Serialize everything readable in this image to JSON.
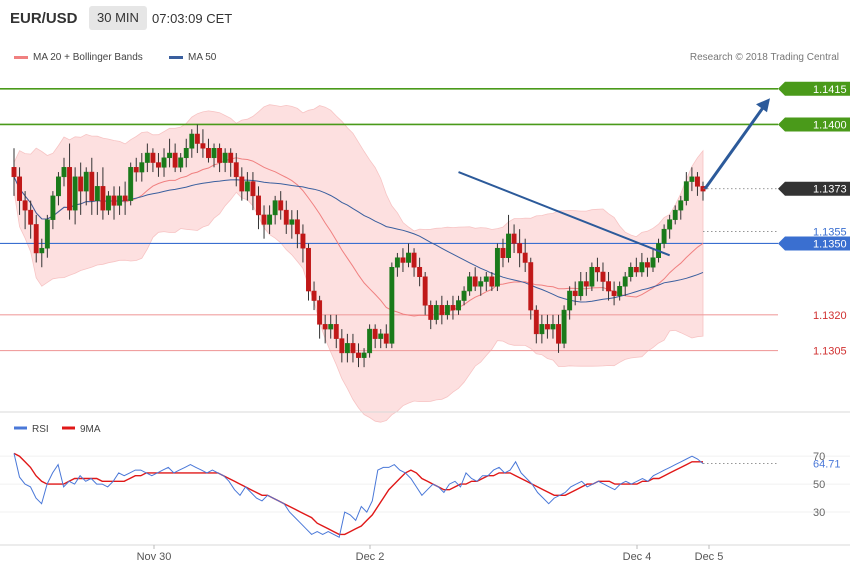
{
  "header": {
    "symbol": "EUR/USD",
    "timeframe": "30 MIN",
    "time": "07:03:09 CET"
  },
  "legend": {
    "ma20": {
      "label": "MA 20 + Bollinger Bands",
      "color": "#f08080"
    },
    "ma50": {
      "label": "MA 50",
      "color": "#3a5f9e"
    },
    "copyright": "Research © 2018 Trading Central"
  },
  "rsi_legend": {
    "rsi": {
      "label": "RSI",
      "color": "#4a78d8"
    },
    "ma9": {
      "label": "9MA",
      "color": "#e01818"
    }
  },
  "colors": {
    "up": "#1a7a1a",
    "down": "#c01818",
    "bb_fill": "#fde0e0",
    "support_line": "#f0a0a0",
    "pivot_line": "#3a6fd0",
    "resistance_line": "#4a9a1a",
    "trend_arrow": "#2c5a9a",
    "price_marker": "#333333"
  },
  "chart_data": [
    {
      "type": "candlestick",
      "title": "EUR/USD",
      "y_range": [
        1.128,
        1.1425
      ],
      "x_ticks": [
        "Nov 30",
        "Dec 2",
        "Dec 4",
        "Dec 5"
      ],
      "current_price": "1.1373",
      "levels": [
        {
          "value": 1.1415,
          "label": "1.1415",
          "kind": "resistance"
        },
        {
          "value": 1.14,
          "label": "1.1400",
          "kind": "resistance"
        },
        {
          "value": 1.1355,
          "label": "1.1355",
          "kind": "pivot-text"
        },
        {
          "value": 1.135,
          "label": "1.1350",
          "kind": "pivot"
        },
        {
          "value": 1.132,
          "label": "1.1320",
          "kind": "support"
        },
        {
          "value": 1.1305,
          "label": "1.1305",
          "kind": "support"
        }
      ],
      "candles": [
        [
          1.1382,
          1.1378,
          1.139,
          1.137
        ],
        [
          1.1378,
          1.1368,
          1.1382,
          1.1362
        ],
        [
          1.1368,
          1.1364,
          1.1372,
          1.1356
        ],
        [
          1.1364,
          1.1358,
          1.1368,
          1.1352
        ],
        [
          1.1358,
          1.1346,
          1.1362,
          1.1342
        ],
        [
          1.1346,
          1.1348,
          1.1352,
          1.134
        ],
        [
          1.1348,
          1.136,
          1.1362,
          1.1344
        ],
        [
          1.136,
          1.137,
          1.1372,
          1.1356
        ],
        [
          1.137,
          1.1378,
          1.138,
          1.1366
        ],
        [
          1.1378,
          1.1382,
          1.1386,
          1.1374
        ],
        [
          1.1382,
          1.1364,
          1.1392,
          1.136
        ],
        [
          1.1364,
          1.1378,
          1.1382,
          1.1358
        ],
        [
          1.1378,
          1.1372,
          1.1384,
          1.1362
        ],
        [
          1.1372,
          1.138,
          1.1382,
          1.1366
        ],
        [
          1.138,
          1.1368,
          1.1386,
          1.1362
        ],
        [
          1.1368,
          1.1374,
          1.138,
          1.1362
        ],
        [
          1.1374,
          1.1364,
          1.1382,
          1.136
        ],
        [
          1.1364,
          1.137,
          1.1372,
          1.1362
        ],
        [
          1.137,
          1.1366,
          1.1374,
          1.136
        ],
        [
          1.1366,
          1.137,
          1.1374,
          1.1362
        ],
        [
          1.137,
          1.1368,
          1.1376,
          1.1362
        ],
        [
          1.1368,
          1.1382,
          1.1384,
          1.1366
        ],
        [
          1.1382,
          1.138,
          1.1386,
          1.1376
        ],
        [
          1.138,
          1.1384,
          1.1388,
          1.1376
        ],
        [
          1.1384,
          1.1388,
          1.1392,
          1.138
        ],
        [
          1.1388,
          1.1384,
          1.139,
          1.138
        ],
        [
          1.1384,
          1.1382,
          1.1388,
          1.1378
        ],
        [
          1.1382,
          1.1386,
          1.139,
          1.1378
        ],
        [
          1.1386,
          1.1388,
          1.1394,
          1.1382
        ],
        [
          1.1388,
          1.1382,
          1.1392,
          1.138
        ],
        [
          1.1382,
          1.1386,
          1.1388,
          1.138
        ],
        [
          1.1386,
          1.139,
          1.1394,
          1.1382
        ],
        [
          1.139,
          1.1396,
          1.1398,
          1.1386
        ],
        [
          1.1396,
          1.1392,
          1.14,
          1.1388
        ],
        [
          1.1392,
          1.139,
          1.1398,
          1.1386
        ],
        [
          1.139,
          1.1386,
          1.1394,
          1.1384
        ],
        [
          1.1386,
          1.139,
          1.1392,
          1.1382
        ],
        [
          1.139,
          1.1384,
          1.1392,
          1.138
        ],
        [
          1.1384,
          1.1388,
          1.139,
          1.138
        ],
        [
          1.1388,
          1.1384,
          1.139,
          1.1378
        ],
        [
          1.1384,
          1.1378,
          1.1388,
          1.1374
        ],
        [
          1.1378,
          1.1372,
          1.1382,
          1.1368
        ],
        [
          1.1372,
          1.1376,
          1.138,
          1.1368
        ],
        [
          1.1376,
          1.137,
          1.138,
          1.1364
        ],
        [
          1.137,
          1.1362,
          1.1374,
          1.1356
        ],
        [
          1.1362,
          1.1358,
          1.1366,
          1.1352
        ],
        [
          1.1358,
          1.1362,
          1.1366,
          1.1354
        ],
        [
          1.1362,
          1.1368,
          1.137,
          1.1358
        ],
        [
          1.1368,
          1.1364,
          1.1372,
          1.136
        ],
        [
          1.1364,
          1.1358,
          1.1368,
          1.1354
        ],
        [
          1.1358,
          1.136,
          1.1364,
          1.1352
        ],
        [
          1.136,
          1.1354,
          1.1364,
          1.1348
        ],
        [
          1.1354,
          1.1348,
          1.1358,
          1.1342
        ],
        [
          1.1348,
          1.133,
          1.135,
          1.1326
        ],
        [
          1.133,
          1.1326,
          1.1334,
          1.1322
        ],
        [
          1.1326,
          1.1316,
          1.1328,
          1.131
        ],
        [
          1.1316,
          1.1314,
          1.132,
          1.1308
        ],
        [
          1.1314,
          1.1316,
          1.132,
          1.131
        ],
        [
          1.1316,
          1.131,
          1.132,
          1.1306
        ],
        [
          1.131,
          1.1304,
          1.1314,
          1.13
        ],
        [
          1.1304,
          1.1308,
          1.1312,
          1.13
        ],
        [
          1.1308,
          1.1304,
          1.1312,
          1.13
        ],
        [
          1.1304,
          1.1302,
          1.1308,
          1.1298
        ],
        [
          1.1302,
          1.1304,
          1.1306,
          1.1298
        ],
        [
          1.1304,
          1.1314,
          1.1316,
          1.1302
        ],
        [
          1.1314,
          1.131,
          1.1316,
          1.1306
        ],
        [
          1.131,
          1.1312,
          1.1314,
          1.1306
        ],
        [
          1.1312,
          1.1308,
          1.1316,
          1.1306
        ],
        [
          1.1308,
          1.134,
          1.1342,
          1.1306
        ],
        [
          1.134,
          1.1344,
          1.1346,
          1.1336
        ],
        [
          1.1344,
          1.1342,
          1.1348,
          1.1338
        ],
        [
          1.1342,
          1.1346,
          1.135,
          1.134
        ],
        [
          1.1346,
          1.134,
          1.1348,
          1.1336
        ],
        [
          1.134,
          1.1336,
          1.1344,
          1.1332
        ],
        [
          1.1336,
          1.1324,
          1.1338,
          1.132
        ],
        [
          1.1324,
          1.1318,
          1.1326,
          1.1314
        ],
        [
          1.1318,
          1.1324,
          1.1326,
          1.1316
        ],
        [
          1.1324,
          1.132,
          1.1328,
          1.1316
        ],
        [
          1.132,
          1.1324,
          1.1326,
          1.1318
        ],
        [
          1.1324,
          1.1322,
          1.1328,
          1.1318
        ],
        [
          1.1322,
          1.1326,
          1.1328,
          1.132
        ],
        [
          1.1326,
          1.133,
          1.1332,
          1.1324
        ],
        [
          1.133,
          1.1336,
          1.1338,
          1.1328
        ],
        [
          1.1336,
          1.1332,
          1.134,
          1.133
        ],
        [
          1.1332,
          1.1334,
          1.1336,
          1.1328
        ],
        [
          1.1334,
          1.1336,
          1.1338,
          1.133
        ],
        [
          1.1336,
          1.1332,
          1.1338,
          1.133
        ],
        [
          1.1332,
          1.1348,
          1.135,
          1.133
        ],
        [
          1.1348,
          1.1344,
          1.1352,
          1.134
        ],
        [
          1.1344,
          1.1354,
          1.1362,
          1.1342
        ],
        [
          1.1354,
          1.135,
          1.1358,
          1.1346
        ],
        [
          1.135,
          1.1346,
          1.1356,
          1.134
        ],
        [
          1.1346,
          1.1342,
          1.1352,
          1.1338
        ],
        [
          1.1342,
          1.1322,
          1.1344,
          1.1318
        ],
        [
          1.1322,
          1.1312,
          1.1324,
          1.1308
        ],
        [
          1.1312,
          1.1316,
          1.132,
          1.1308
        ],
        [
          1.1316,
          1.1314,
          1.132,
          1.131
        ],
        [
          1.1314,
          1.1316,
          1.132,
          1.131
        ],
        [
          1.1316,
          1.1308,
          1.132,
          1.1304
        ],
        [
          1.1308,
          1.1322,
          1.1324,
          1.1306
        ],
        [
          1.1322,
          1.133,
          1.1332,
          1.1318
        ],
        [
          1.133,
          1.1328,
          1.1334,
          1.1324
        ],
        [
          1.1328,
          1.1334,
          1.1338,
          1.1326
        ],
        [
          1.1334,
          1.1332,
          1.1338,
          1.1328
        ],
        [
          1.1332,
          1.134,
          1.1342,
          1.133
        ],
        [
          1.134,
          1.1338,
          1.1344,
          1.1334
        ],
        [
          1.1338,
          1.1334,
          1.1342,
          1.133
        ],
        [
          1.1334,
          1.133,
          1.1338,
          1.1326
        ],
        [
          1.133,
          1.1328,
          1.1334,
          1.1324
        ],
        [
          1.1328,
          1.1332,
          1.1334,
          1.1326
        ],
        [
          1.1332,
          1.1336,
          1.1338,
          1.1328
        ],
        [
          1.1336,
          1.134,
          1.1342,
          1.1334
        ],
        [
          1.134,
          1.1338,
          1.1344,
          1.1336
        ],
        [
          1.1338,
          1.1342,
          1.1346,
          1.1336
        ],
        [
          1.1342,
          1.134,
          1.1344,
          1.1336
        ],
        [
          1.134,
          1.1344,
          1.1348,
          1.1338
        ],
        [
          1.1344,
          1.135,
          1.1352,
          1.1342
        ],
        [
          1.135,
          1.1356,
          1.1358,
          1.1348
        ],
        [
          1.1356,
          1.136,
          1.1362,
          1.1352
        ],
        [
          1.136,
          1.1364,
          1.1366,
          1.1358
        ],
        [
          1.1364,
          1.1368,
          1.137,
          1.136
        ],
        [
          1.1368,
          1.1376,
          1.138,
          1.1366
        ],
        [
          1.1376,
          1.1378,
          1.1382,
          1.1372
        ],
        [
          1.1378,
          1.1374,
          1.138,
          1.137
        ],
        [
          1.1374,
          1.1372,
          1.1376,
          1.1368
        ]
      ]
    },
    {
      "type": "line",
      "title": "RSI",
      "y_ticks": [
        "70",
        "50",
        "30"
      ],
      "y_range": [
        10,
        78
      ],
      "current_value": "64.71",
      "series": [
        {
          "name": "RSI",
          "values": [
            72,
            55,
            50,
            48,
            40,
            36,
            50,
            58,
            64,
            48,
            52,
            50,
            56,
            52,
            54,
            50,
            50,
            48,
            52,
            58,
            56,
            58,
            60,
            60,
            58,
            56,
            58,
            60,
            62,
            58,
            60,
            62,
            64,
            62,
            60,
            58,
            60,
            58,
            56,
            52,
            46,
            42,
            48,
            44,
            40,
            38,
            42,
            40,
            38,
            36,
            30,
            26,
            22,
            18,
            14,
            16,
            14,
            16,
            14,
            12,
            30,
            28,
            24,
            34,
            30,
            38,
            60,
            62,
            62,
            64,
            60,
            58,
            54,
            48,
            42,
            46,
            50,
            48,
            44,
            50,
            52,
            48,
            58,
            54,
            52,
            56,
            56,
            60,
            62,
            58,
            60,
            66,
            58,
            54,
            50,
            44,
            40,
            36,
            40,
            42,
            44,
            48,
            50,
            52,
            48,
            50,
            52,
            50,
            48,
            46,
            50,
            52,
            50,
            52,
            54,
            52,
            56,
            58,
            60,
            62,
            64,
            66,
            68,
            70,
            68,
            64.71
          ]
        },
        {
          "name": "9MA",
          "values": [
            72,
            70,
            66,
            62,
            56,
            52,
            50,
            50,
            50,
            50,
            52,
            54,
            54,
            54,
            54,
            54,
            52,
            52,
            52,
            52,
            52,
            54,
            56,
            56,
            58,
            58,
            58,
            58,
            58,
            58,
            58,
            58,
            58,
            58,
            58,
            58,
            58,
            58,
            56,
            54,
            52,
            50,
            48,
            46,
            44,
            42,
            42,
            40,
            38,
            36,
            34,
            32,
            30,
            28,
            26,
            22,
            20,
            18,
            16,
            14,
            14,
            16,
            18,
            20,
            24,
            28,
            34,
            40,
            46,
            50,
            54,
            58,
            60,
            58,
            54,
            52,
            50,
            48,
            46,
            46,
            48,
            50,
            50,
            52,
            52,
            54,
            56,
            56,
            58,
            58,
            58,
            56,
            54,
            52,
            50,
            48,
            46,
            44,
            42,
            42,
            42,
            44,
            46,
            48,
            50,
            50,
            52,
            52,
            52,
            50,
            50,
            50,
            50,
            50,
            52,
            52,
            54,
            54,
            56,
            58,
            60,
            62,
            64,
            66,
            66,
            66
          ]
        }
      ]
    }
  ]
}
